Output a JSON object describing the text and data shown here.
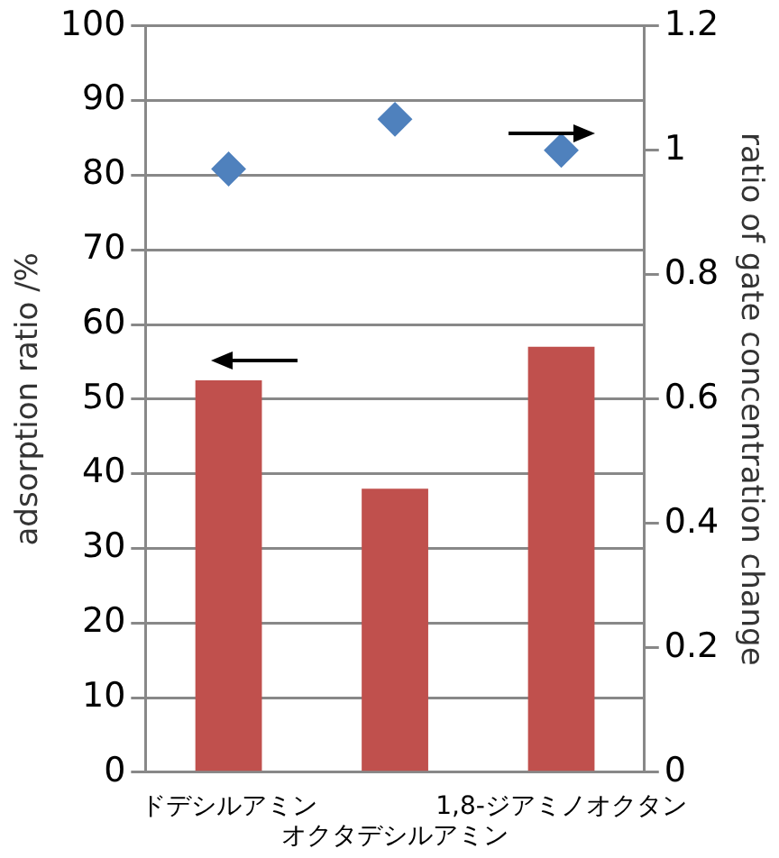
{
  "chart_data": {
    "type": "bar",
    "categories": [
      "ドデシルアミン",
      "オクタデシルアミン",
      "1,8-ジアミノオクタン"
    ],
    "series": [
      {
        "color": "#c0504d",
        "values": [
          52.5,
          38,
          57
        ]
      },
      {
        "type": "scatter",
        "axis": "y2",
        "color": "#4f81bd",
        "values": [
          0.97,
          1.05,
          1
        ]
      }
    ],
    "marker": "diamond",
    "ylabel": "adsorption ratio /%",
    "y2label": "ratio of gate concentration change",
    "ylim": [
      0,
      100
    ],
    "yticks": [
      0,
      10,
      20,
      30,
      40,
      50,
      60,
      70,
      80,
      90,
      100
    ],
    "y2lim": [
      0,
      1.2
    ],
    "y2ticks": [
      0,
      0.2,
      0.4,
      0.6,
      0.8,
      1,
      1.2
    ],
    "grid": "y",
    "legend": false
  }
}
